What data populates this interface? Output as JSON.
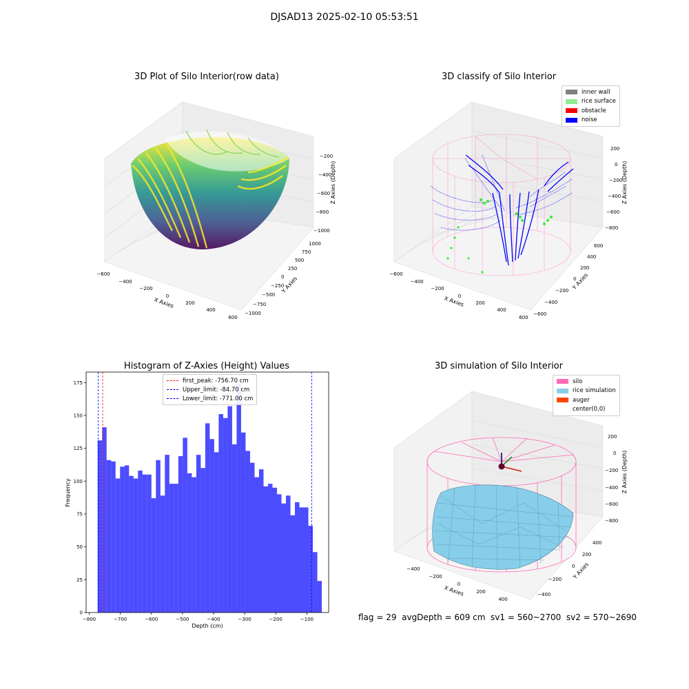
{
  "suptitle": "DJSAD13 2025-02-10 05:53:51",
  "panels": {
    "raw": {
      "title": "3D Plot of Silo Interior(row data)",
      "xlabel": "X Axies",
      "ylabel": "Y Axies",
      "zlabel": "Z Axies (Depth)",
      "xticks": [
        "−600",
        "−400",
        "−200",
        "0",
        "200",
        "400",
        "600"
      ],
      "yticks": [
        "−1000",
        "−750",
        "−500",
        "−250",
        "0",
        "250",
        "500",
        "750",
        "1000"
      ],
      "zticks": [
        "−1000",
        "−800",
        "−600",
        "−400",
        "−200"
      ],
      "colormap": "viridis"
    },
    "classify": {
      "title": "3D classify of Silo Interior",
      "xlabel": "X Axies",
      "ylabel": "Y Axies",
      "zlabel": "Z Axies (Depth)",
      "xticks": [
        "−600",
        "−400",
        "−200",
        "0",
        "200",
        "400",
        "600"
      ],
      "yticks": [
        "−600",
        "−400",
        "−200",
        "0",
        "200",
        "400",
        "600"
      ],
      "zticks": [
        "−800",
        "−600",
        "−400",
        "−200",
        "0",
        "200"
      ],
      "legend": [
        {
          "label": "inner wall",
          "color": "#808080"
        },
        {
          "label": "rice surface",
          "color": "#90ee90"
        },
        {
          "label": "obstacle",
          "color": "#ff0000"
        },
        {
          "label": "noise",
          "color": "#0000ff"
        }
      ]
    },
    "simulation": {
      "title": "3D simulation of Silo Interior",
      "xlabel": "X Axies",
      "ylabel": "Y Axies",
      "zlabel": "Z Axies (Depth)",
      "xticks": [
        "−400",
        "−200",
        "0",
        "200",
        "400"
      ],
      "yticks": [
        "−400",
        "−200",
        "0",
        "200",
        "400"
      ],
      "zticks": [
        "−800",
        "−600",
        "−400",
        "−200",
        "0",
        "200"
      ],
      "legend": [
        {
          "label": "silo",
          "color": "#ff69b4"
        },
        {
          "label": "rice simulation",
          "color": "#87ceeb"
        },
        {
          "label": "auger",
          "color": "#ff4500"
        },
        {
          "label": "center(0,0)",
          "color": "#ffffff"
        }
      ]
    }
  },
  "footer": "flag = 29  avgDepth = 609 cm  sv1 = 560~2700  sv2 = 570~2690",
  "chart_data": {
    "type": "bar",
    "title": "Histogram of Z-Axies (Height) Values",
    "xlabel": "Depth (cm)",
    "ylabel": "Frequency",
    "xlim": [
      -810,
      -30
    ],
    "ylim": [
      0,
      183
    ],
    "xticks": [
      -800,
      -700,
      -600,
      -500,
      -400,
      -300,
      -200,
      -100
    ],
    "xtick_labels": [
      "−800",
      "−700",
      "−600",
      "−500",
      "−400",
      "−300",
      "−200",
      "−100"
    ],
    "yticks": [
      0,
      25,
      50,
      75,
      100,
      125,
      150,
      175
    ],
    "bar_color": "#0000ff",
    "bin_edges_range": [
      -773,
      -52
    ],
    "values": [
      131,
      141,
      116,
      115,
      102,
      111,
      112,
      104,
      102,
      108,
      105,
      105,
      87,
      116,
      89,
      120,
      98,
      98,
      119,
      133,
      106,
      103,
      120,
      110,
      144,
      132,
      122,
      151,
      148,
      157,
      128,
      174,
      137,
      123,
      114,
      103,
      109,
      96,
      98,
      95,
      90,
      83,
      89,
      74,
      84,
      80,
      80,
      66,
      46,
      24
    ],
    "vlines": [
      {
        "label": "first_peak: -756.70 cm",
        "x": -756.7,
        "color": "#ff0000"
      },
      {
        "label": "Upper_limit: -84.70 cm",
        "x": -84.7,
        "color": "#0000ff"
      },
      {
        "label": "Lower_limit: -771.00 cm",
        "x": -771.0,
        "color": "#0000ff"
      }
    ]
  }
}
